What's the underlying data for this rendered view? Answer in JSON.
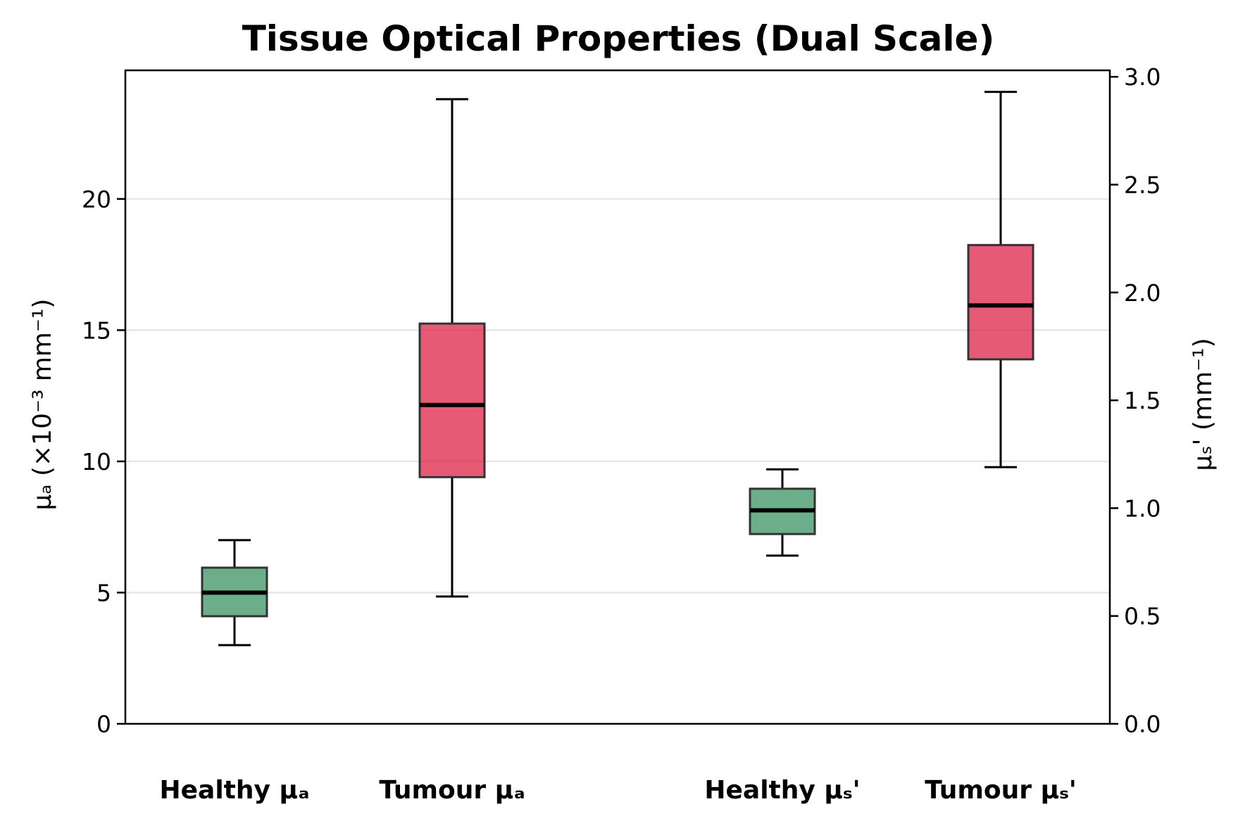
{
  "chart_data": {
    "type": "box",
    "title": "Tissue Optical Properties (Dual Scale)",
    "left_axis": {
      "label": "μₐ (×10⁻³ mm⁻¹)",
      "range": [
        0,
        24.9
      ],
      "ticks": [
        0,
        5,
        10,
        15,
        20
      ],
      "tick_labels": [
        "0",
        "5",
        "10",
        "15",
        "20"
      ],
      "grid": true
    },
    "right_axis": {
      "label": "μₛ' (mm⁻¹)",
      "range": [
        0,
        3.03
      ],
      "ticks": [
        0.0,
        0.5,
        1.0,
        1.5,
        2.0,
        2.5,
        3.0
      ],
      "tick_labels": [
        "0.0",
        "0.5",
        "1.0",
        "1.5",
        "2.0",
        "2.5",
        "3.0"
      ]
    },
    "categories": [
      "Healthy μₐ",
      "Tumour μₐ",
      "Healthy μₛ'",
      "Tumour μₛ'"
    ],
    "boxes": [
      {
        "label": "Healthy μₐ",
        "axis": "left",
        "color": "#2e8b57",
        "whisker_low": 3.0,
        "q1": 4.1,
        "median": 5.0,
        "q3": 5.95,
        "whisker_high": 7.0
      },
      {
        "label": "Tumour μₐ",
        "axis": "left",
        "color": "#dc143c",
        "whisker_low": 4.85,
        "q1": 9.4,
        "median": 12.15,
        "q3": 15.25,
        "whisker_high": 23.8
      },
      {
        "label": "Healthy μₛ'",
        "axis": "right",
        "color": "#2e8b57",
        "whisker_low": 0.78,
        "q1": 0.88,
        "median": 0.99,
        "q3": 1.09,
        "whisker_high": 1.18
      },
      {
        "label": "Tumour μₛ'",
        "axis": "right",
        "color": "#dc143c",
        "whisker_low": 1.19,
        "q1": 1.69,
        "median": 1.94,
        "q3": 2.22,
        "whisker_high": 2.93
      }
    ]
  }
}
